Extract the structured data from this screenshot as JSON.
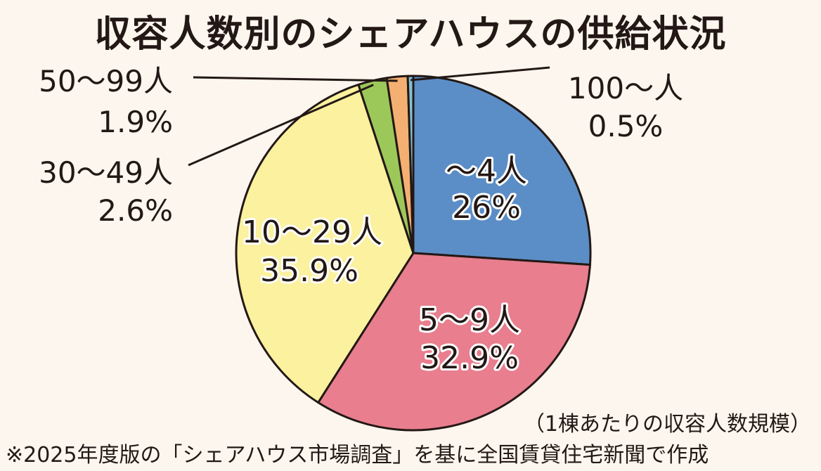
{
  "title": "収容人数別のシェアハウスの供給状況",
  "unit_note": "（1棟あたりの収容人数規模）",
  "source": "※2025年度版の「シェアハウス市場調査」を基に全国賃貸住宅新聞で作成",
  "colors": {
    "slice_1": "#5b8ec7",
    "slice_2": "#e87e8e",
    "slice_3": "#fbf19e",
    "slice_4": "#9cc85a",
    "slice_5": "#f4b073",
    "slice_6": "#7fc2d4",
    "outline": "#231815"
  },
  "chart_data": {
    "type": "pie",
    "title": "収容人数別のシェアハウスの供給状況",
    "start": "12 o'clock, clockwise",
    "slices": [
      {
        "label": "～4人",
        "value": 26,
        "display": "26%"
      },
      {
        "label": "5～9人",
        "value": 32.9,
        "display": "32.9%"
      },
      {
        "label": "10～29人",
        "value": 35.9,
        "display": "35.9%"
      },
      {
        "label": "30～49人",
        "value": 2.6,
        "display": "2.6%"
      },
      {
        "label": "50～99人",
        "value": 1.9,
        "display": "1.9%"
      },
      {
        "label": "100～人",
        "value": 0.5,
        "display": "0.5%"
      }
    ]
  }
}
